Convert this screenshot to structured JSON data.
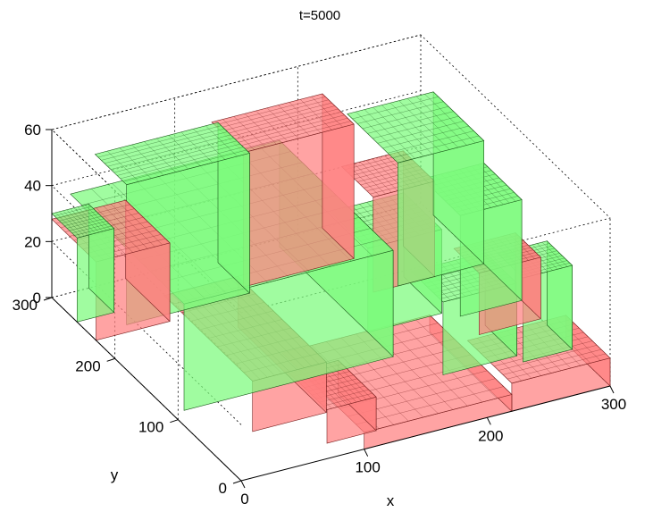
{
  "chart_data": {
    "type": "surface",
    "title": "t=5000",
    "xlabel": "x",
    "ylabel": "y",
    "zlabel": "",
    "xlim": [
      0,
      300
    ],
    "ylim": [
      0,
      300
    ],
    "zlim": [
      0,
      60
    ],
    "xticks": [
      "0",
      "100",
      "200",
      "300"
    ],
    "yticks": [
      "0",
      "100",
      "200",
      "300"
    ],
    "zticks": [
      "0",
      "20",
      "40",
      "60"
    ],
    "grid": true,
    "series": [
      {
        "color": "#ff8080",
        "edge": "#7a2020",
        "blocks": [
          {
            "x": [
              100,
              220
            ],
            "y": [
              0,
              130
            ],
            "z": 6
          },
          {
            "x": [
              220,
              300
            ],
            "y": [
              0,
              70
            ],
            "z": 10
          },
          {
            "x": [
              0,
              60
            ],
            "y": [
              230,
              300
            ],
            "z": 28
          },
          {
            "x": [
              40,
              100
            ],
            "y": [
              60,
              200
            ],
            "z": 18
          },
          {
            "x": [
              130,
              220
            ],
            "y": [
              250,
              300
            ],
            "z": 48
          },
          {
            "x": [
              210,
              260
            ],
            "y": [
              200,
              250
            ],
            "z": 34
          },
          {
            "x": [
              250,
              300
            ],
            "y": [
              110,
              150
            ],
            "z": 22
          },
          {
            "x": [
              80,
              120
            ],
            "y": [
              20,
              80
            ],
            "z": 12
          }
        ]
      },
      {
        "color": "#7cfb7c",
        "edge": "#1c5a1c",
        "blocks": [
          {
            "x": [
              10,
              180
            ],
            "y": [
              110,
              290
            ],
            "z": 38
          },
          {
            "x": [
              30,
              130
            ],
            "y": [
              240,
              290
            ],
            "z": 50
          },
          {
            "x": [
              180,
              240
            ],
            "y": [
              150,
              210
            ],
            "z": 30
          },
          {
            "x": [
              230,
              300
            ],
            "y": [
              200,
              280
            ],
            "z": 44
          },
          {
            "x": [
              250,
              300
            ],
            "y": [
              140,
              200
            ],
            "z": 36
          },
          {
            "x": [
              200,
              260
            ],
            "y": [
              70,
              120
            ],
            "z": 26
          },
          {
            "x": [
              0,
              30
            ],
            "y": [
              260,
              300
            ],
            "z": 30
          },
          {
            "x": [
              260,
              300
            ],
            "y": [
              60,
              100
            ],
            "z": 30
          }
        ]
      }
    ]
  }
}
